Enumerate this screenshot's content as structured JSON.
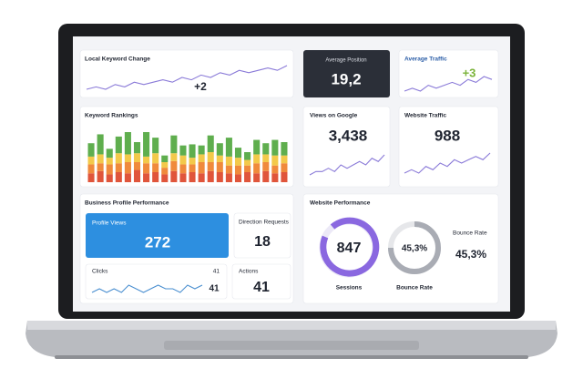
{
  "cards": {
    "local_keyword_change": {
      "title": "Local Keyword Change",
      "value": "+2",
      "trend": [
        4,
        5,
        4,
        6,
        5,
        7,
        6,
        7,
        8,
        7,
        9,
        8,
        10,
        9,
        11,
        10,
        12,
        11,
        12,
        13,
        12,
        14
      ]
    },
    "average_position": {
      "title": "Average Position",
      "value": "19,2"
    },
    "average_traffic": {
      "title": "Average Traffic",
      "value": "+3",
      "trend": [
        3,
        4,
        3,
        5,
        4,
        5,
        6,
        5,
        7,
        6,
        8,
        7
      ]
    },
    "keyword_rankings": {
      "title": "Keyword Rankings",
      "series": [
        {
          "color": "#e0553b",
          "values": [
            8,
            10,
            7,
            9,
            8,
            11,
            8,
            9,
            7,
            10,
            8,
            9,
            8,
            10,
            9,
            8,
            7,
            9,
            8,
            10,
            8,
            9
          ]
        },
        {
          "color": "#f08a3c",
          "values": [
            8,
            7,
            9,
            8,
            10,
            7,
            9,
            8,
            6,
            9,
            8,
            7,
            10,
            8,
            9,
            7,
            8,
            6,
            9,
            8,
            7,
            8
          ]
        },
        {
          "color": "#f3c94a",
          "values": [
            7,
            8,
            6,
            9,
            7,
            8,
            6,
            9,
            5,
            7,
            8,
            6,
            7,
            9,
            6,
            8,
            7,
            5,
            8,
            7,
            9,
            7
          ]
        },
        {
          "color": "#5fae4e",
          "values": [
            12,
            18,
            8,
            15,
            20,
            10,
            22,
            14,
            6,
            16,
            9,
            12,
            8,
            15,
            11,
            17,
            9,
            7,
            13,
            10,
            14,
            12
          ]
        }
      ]
    },
    "views_on_google": {
      "title": "Views on Google",
      "value": "3,438",
      "trend": [
        2,
        3,
        3,
        4,
        3,
        5,
        4,
        5,
        6,
        5,
        7,
        6,
        8
      ]
    },
    "website_traffic": {
      "title": "Website Traffic",
      "value": "988",
      "trend": [
        2,
        3,
        2,
        4,
        3,
        5,
        4,
        6,
        5,
        6,
        7,
        6,
        8
      ]
    },
    "business_profile": {
      "title": "Business Profile Performance",
      "profile_views": {
        "label": "Profile Views",
        "value": "272"
      },
      "direction_requests": {
        "label": "Direction Requests",
        "value": "18"
      },
      "clicks": {
        "label": "Clicks",
        "top_value": "41",
        "value": "41",
        "trend": [
          5,
          6,
          5,
          6,
          5,
          7,
          6,
          5,
          6,
          7,
          6,
          6,
          5,
          7,
          6,
          7
        ]
      },
      "actions": {
        "label": "Actions",
        "value": "41"
      }
    },
    "website_performance": {
      "title": "Website Performance",
      "sessions": {
        "value": "847",
        "label": "Sessions"
      },
      "bounce_rate": {
        "value": "45,3%",
        "label": "Bounce Rate"
      },
      "bounce_rate_side": {
        "label": "Bounce Rate",
        "value": "45,3%"
      }
    }
  }
}
